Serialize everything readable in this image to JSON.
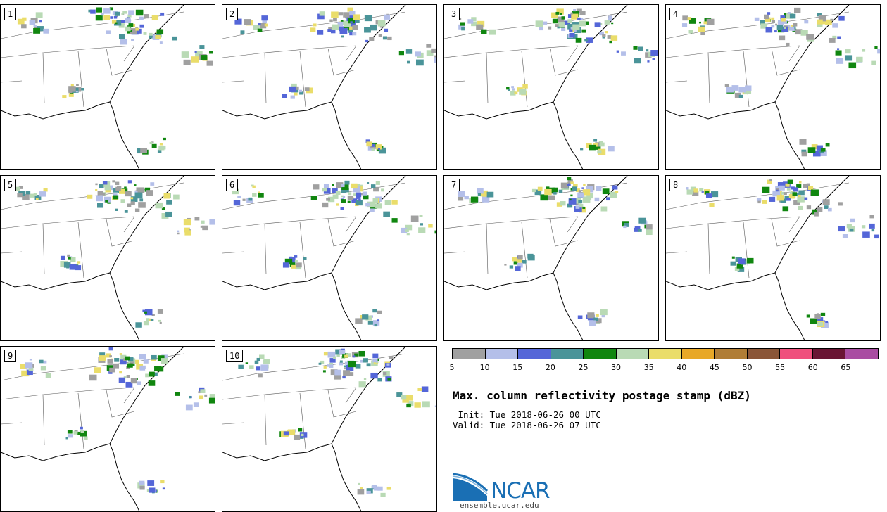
{
  "panels": [
    {
      "label": "1"
    },
    {
      "label": "2"
    },
    {
      "label": "3"
    },
    {
      "label": "4"
    },
    {
      "label": "5"
    },
    {
      "label": "6"
    },
    {
      "label": "7"
    },
    {
      "label": "8"
    },
    {
      "label": "9"
    },
    {
      "label": "10"
    }
  ],
  "colorbar": {
    "colors": [
      "#a0a0a0",
      "#b4bfe9",
      "#5466d8",
      "#4a9499",
      "#10860f",
      "#b9dab5",
      "#eadd6a",
      "#e8a827",
      "#b07d35",
      "#8a5537",
      "#ef507d",
      "#6a1534",
      "#a94da2"
    ],
    "ticks": [
      "5",
      "10",
      "15",
      "20",
      "25",
      "30",
      "35",
      "40",
      "45",
      "50",
      "55",
      "60",
      "65"
    ]
  },
  "title": "Max. column reflectivity postage stamp (dBZ)",
  "init": " Init: Tue 2018-06-26 00 UTC",
  "valid": "Valid: Tue 2018-06-26 07 UTC",
  "logo": {
    "text": "NCAR",
    "url": "ensemble.ucar.edu",
    "color": "#1a6fb4"
  }
}
